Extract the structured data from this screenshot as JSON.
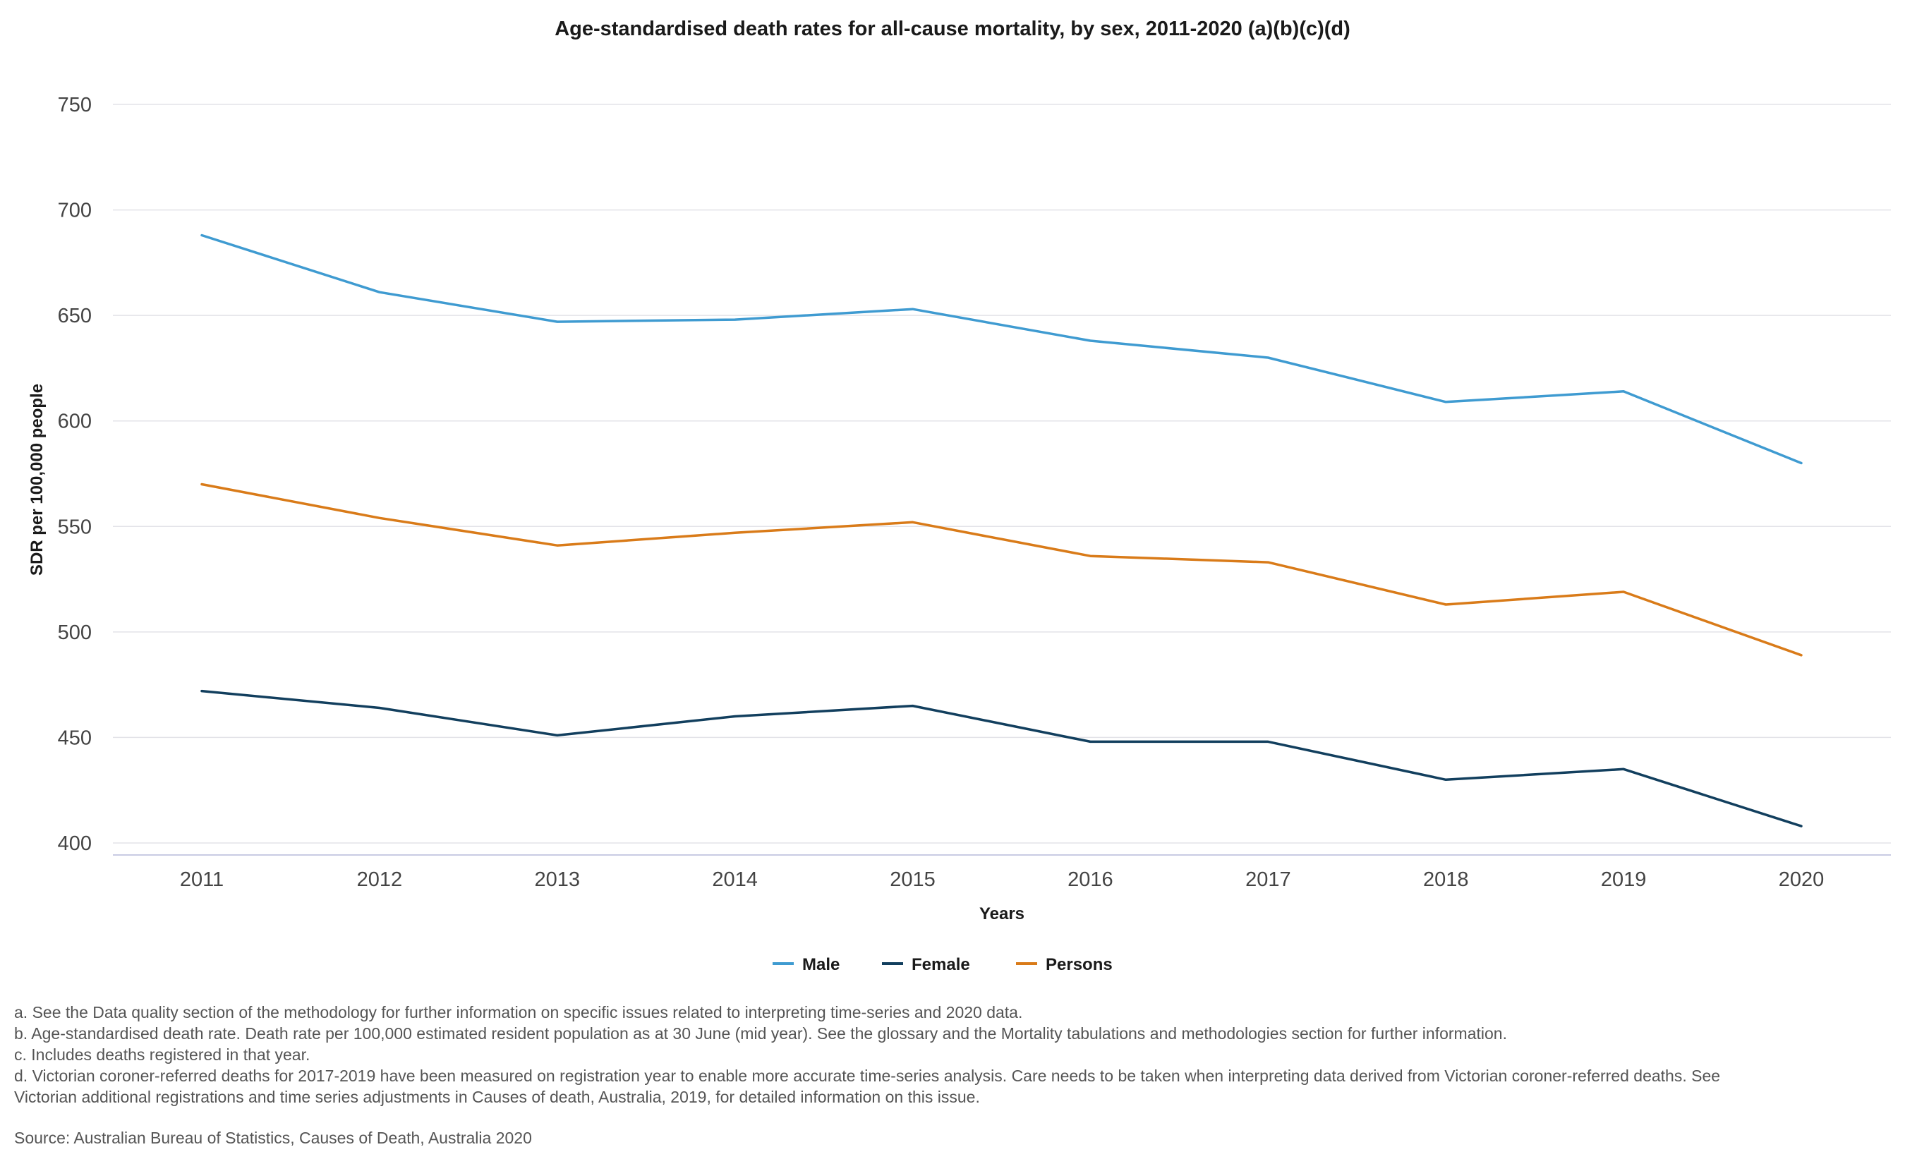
{
  "chart_data": {
    "type": "line",
    "title": "Age-standardised death rates for all-cause mortality, by sex, 2011-2020 (a)(b)(c)(d)",
    "xlabel": "Years",
    "ylabel": "SDR per 100,000 people",
    "ylim": [
      400,
      750
    ],
    "yticks": [
      400,
      450,
      500,
      550,
      600,
      650,
      700,
      750
    ],
    "categories": [
      "2011",
      "2012",
      "2013",
      "2014",
      "2015",
      "2016",
      "2017",
      "2018",
      "2019",
      "2020"
    ],
    "grid": "horizontal",
    "legend_position": "bottom-center",
    "series": [
      {
        "name": "Male",
        "color": "#3f9bd1",
        "values": [
          688,
          661,
          647,
          648,
          653,
          638,
          630,
          609,
          614,
          580
        ]
      },
      {
        "name": "Female",
        "color": "#123f5e",
        "values": [
          472,
          464,
          451,
          460,
          465,
          448,
          448,
          430,
          435,
          408
        ]
      },
      {
        "name": "Persons",
        "color": "#d97b19",
        "values": [
          570,
          554,
          541,
          547,
          552,
          536,
          533,
          513,
          519,
          489
        ]
      }
    ]
  },
  "notes": [
    "a. See the Data quality section of the methodology for further information on specific issues related to interpreting time-series and 2020 data.",
    "b. Age-standardised death rate. Death rate per 100,000 estimated resident population as at 30 June (mid year). See the glossary and the Mortality tabulations and methodologies section for further information.",
    "c. Includes deaths registered in that year.",
    "d. Victorian coroner-referred deaths for 2017-2019 have been measured on registration year to enable more accurate time-series analysis. Care needs to be taken when interpreting data derived from Victorian coroner-referred deaths. See",
    "Victorian additional registrations and time series adjustments in Causes of death, Australia, 2019, for detailed information on this issue."
  ],
  "source": "Source: Australian Bureau of Statistics, Causes of Death, Australia 2020"
}
